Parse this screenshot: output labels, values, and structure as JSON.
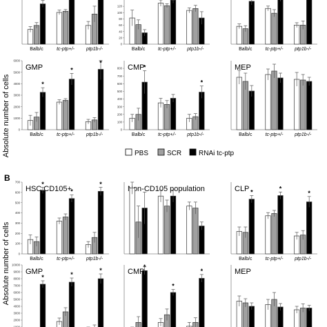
{
  "figure": {
    "section_b_label": "B",
    "y_axis_label": "Absolute number of cells",
    "legend": {
      "items": [
        {
          "label": "PBS",
          "color": "#ffffff"
        },
        {
          "label": "SCR",
          "color": "#a0a0a0"
        },
        {
          "label": "RNAi tc-ptp",
          "color": "#000000"
        }
      ]
    }
  },
  "colors": {
    "PBS": "#ffffff",
    "SCR": "#a0a0a0",
    "RNAi": "#000000"
  },
  "chart_data": [
    {
      "id": "A-top-1",
      "type": "bar",
      "title": "",
      "categories": [
        "Balb/c",
        "tc-ptp+/-",
        "ptp1b-/-"
      ],
      "ylim": [
        0,
        450
      ],
      "yticks": [],
      "series": [
        {
          "name": "PBS",
          "values": [
            130,
            280,
            165
          ],
          "errors": [
            25,
            20,
            35
          ]
        },
        {
          "name": "SCR",
          "values": [
            165,
            290,
            265
          ],
          "errors": [
            25,
            15,
            70
          ]
        },
        {
          "name": "RNAi tc-ptp",
          "values": [
            355,
            420,
            470
          ],
          "errors": [
            30,
            25,
            30
          ]
        }
      ],
      "significance": [
        true,
        true,
        false
      ]
    },
    {
      "id": "A-top-2",
      "type": "bar",
      "title": "",
      "categories": [
        "Balb/c",
        "tc-ptp+/-",
        "ptp1b-/-"
      ],
      "ylim": [
        0,
        140
      ],
      "yticks": [
        0,
        20,
        40,
        60,
        80,
        100,
        120
      ],
      "series": [
        {
          "name": "PBS",
          "values": [
            83,
            130,
            107
          ],
          "errors": [
            25,
            10,
            8
          ]
        },
        {
          "name": "SCR",
          "values": [
            62,
            122,
            113
          ],
          "errors": [
            15,
            6,
            10
          ]
        },
        {
          "name": "RNAi tc-ptp",
          "values": [
            36,
            140,
            83
          ],
          "errors": [
            10,
            10,
            20
          ]
        }
      ],
      "significance": [
        false,
        false,
        false
      ]
    },
    {
      "id": "A-top-3",
      "type": "bar",
      "title": "",
      "categories": [
        "Balb/c",
        "tc-ptp+/-",
        "ptp1b-/-"
      ],
      "ylim": [
        0,
        400
      ],
      "yticks": [],
      "series": [
        {
          "name": "PBS",
          "values": [
            150,
            300,
            160
          ],
          "errors": [
            20,
            20,
            20
          ]
        },
        {
          "name": "SCR",
          "values": [
            130,
            260,
            160
          ],
          "errors": [
            25,
            30,
            35
          ]
        },
        {
          "name": "RNAi tc-ptp",
          "values": [
            360,
            390,
            420
          ],
          "errors": [
            30,
            30,
            30
          ]
        }
      ],
      "significance": [
        false,
        false,
        false
      ]
    },
    {
      "id": "A-GMP",
      "type": "bar",
      "title": "GMP",
      "categories": [
        "Balb/c",
        "tc-ptp+/-",
        "ptp1b-/-"
      ],
      "ylim": [
        0,
        6000
      ],
      "yticks": [
        0,
        1000,
        2000,
        3000,
        4000,
        5000,
        6000
      ],
      "series": [
        {
          "name": "PBS",
          "values": [
            800,
            2400,
            700
          ],
          "errors": [
            450,
            200,
            200
          ]
        },
        {
          "name": "SCR",
          "values": [
            1100,
            2550,
            850
          ],
          "errors": [
            400,
            150,
            200
          ]
        },
        {
          "name": "RNAi tc-ptp",
          "values": [
            3250,
            4400,
            5250
          ],
          "errors": [
            400,
            500,
            900
          ]
        }
      ],
      "significance": [
        true,
        true,
        true
      ]
    },
    {
      "id": "A-CMP",
      "type": "bar",
      "title": "CMP",
      "categories": [
        "Balb/c",
        "tc-ptp+/-",
        "ptp1b-/-"
      ],
      "ylim": [
        0,
        900
      ],
      "yticks": [
        0,
        100,
        200,
        300,
        400,
        500,
        600,
        700,
        800
      ],
      "series": [
        {
          "name": "PBS",
          "values": [
            150,
            350,
            150
          ],
          "errors": [
            50,
            60,
            50
          ]
        },
        {
          "name": "SCR",
          "values": [
            200,
            330,
            170
          ],
          "errors": [
            80,
            50,
            40
          ]
        },
        {
          "name": "RNAi tc-ptp",
          "values": [
            620,
            410,
            490
          ],
          "errors": [
            150,
            50,
            80
          ]
        }
      ],
      "significance": [
        true,
        false,
        true
      ]
    },
    {
      "id": "A-MEP",
      "type": "bar",
      "title": "MEP",
      "categories": [
        "Balb/c",
        "tc-ptp+/-",
        "ptp1b-/-"
      ],
      "ylim": [
        0,
        1000
      ],
      "yticks": [],
      "series": [
        {
          "name": "PBS",
          "values": [
            760,
            800,
            730
          ],
          "errors": [
            100,
            80,
            100
          ]
        },
        {
          "name": "SCR",
          "values": [
            700,
            850,
            720
          ],
          "errors": [
            120,
            100,
            80
          ]
        },
        {
          "name": "RNAi tc-ptp",
          "values": [
            560,
            750,
            700
          ],
          "errors": [
            80,
            70,
            60
          ]
        }
      ],
      "significance": [
        false,
        false,
        false
      ]
    },
    {
      "id": "B-HSC",
      "type": "bar",
      "title": "HSC CD105+",
      "categories": [
        "Balb/c",
        "tc-ptp+/-",
        "ptp1b-/-"
      ],
      "ylim": [
        0,
        700
      ],
      "yticks": [
        0,
        100,
        200,
        300,
        400,
        500,
        600,
        700
      ],
      "series": [
        {
          "name": "PBS",
          "values": [
            140,
            320,
            90
          ],
          "errors": [
            45,
            30,
            30
          ]
        },
        {
          "name": "SCR",
          "values": [
            120,
            360,
            160
          ],
          "errors": [
            45,
            30,
            50
          ]
        },
        {
          "name": "RNAi tc-ptp",
          "values": [
            620,
            540,
            610
          ],
          "errors": [
            30,
            35,
            40
          ]
        }
      ],
      "significance": [
        true,
        true,
        true
      ]
    },
    {
      "id": "B-NonCD105",
      "type": "bar",
      "title": "Non-CD105 population",
      "categories": [
        "",
        "",
        ""
      ],
      "ylim": [
        0,
        180
      ],
      "yticks": [],
      "series": [
        {
          "name": "PBS",
          "values": [
            165,
            145,
            120
          ],
          "errors": [
            15,
            15,
            10
          ]
        },
        {
          "name": "SCR",
          "values": [
            80,
            120,
            115
          ],
          "errors": [
            40,
            15,
            15
          ]
        },
        {
          "name": "RNAi tc-ptp",
          "values": [
            115,
            145,
            70
          ],
          "errors": [
            40,
            15,
            10
          ]
        }
      ],
      "significance": [
        false,
        false,
        false
      ]
    },
    {
      "id": "B-CLP",
      "type": "bar",
      "title": "CLP",
      "categories": [
        "Balb/c",
        "tc-ptp+/-",
        "ptp1b-/-"
      ],
      "ylim": [
        0,
        1600
      ],
      "yticks": [],
      "series": [
        {
          "name": "PBS",
          "values": [
            500,
            850,
            400
          ],
          "errors": [
            100,
            70,
            80
          ]
        },
        {
          "name": "SCR",
          "values": [
            480,
            900,
            420
          ],
          "errors": [
            120,
            70,
            100
          ]
        },
        {
          "name": "RNAi tc-ptp",
          "values": [
            1220,
            1300,
            1160
          ],
          "errors": [
            80,
            80,
            120
          ]
        }
      ],
      "significance": [
        true,
        true,
        true
      ]
    },
    {
      "id": "B-GMP",
      "type": "bar",
      "title": "GMP",
      "categories": [
        "",
        "",
        ""
      ],
      "ylim": [
        0,
        10000
      ],
      "yticks": [
        0,
        1000,
        2000,
        3000,
        4000,
        5000,
        6000,
        7000,
        8000,
        9000,
        10000
      ],
      "series": [
        {
          "name": "PBS",
          "values": [
            100,
            1800,
            700
          ],
          "errors": [
            100,
            500,
            300
          ]
        },
        {
          "name": "SCR",
          "values": [
            300,
            3200,
            900
          ],
          "errors": [
            200,
            600,
            400
          ]
        },
        {
          "name": "RNAi tc-ptp",
          "values": [
            7200,
            7500,
            8000
          ],
          "errors": [
            500,
            600,
            700
          ]
        }
      ],
      "significance": [
        true,
        true,
        true
      ]
    },
    {
      "id": "B-CMP",
      "type": "bar",
      "title": "CMP",
      "categories": [
        "",
        "",
        ""
      ],
      "ylim": [
        0,
        1800
      ],
      "yticks": [],
      "series": [
        {
          "name": "PBS",
          "values": [
            100,
            300,
            200
          ],
          "errors": [
            80,
            100,
            100
          ]
        },
        {
          "name": "SCR",
          "values": [
            300,
            500,
            300
          ],
          "errors": [
            150,
            150,
            120
          ]
        },
        {
          "name": "RNAi tc-ptp",
          "values": [
            1650,
            1080,
            1450
          ],
          "errors": [
            100,
            80,
            100
          ]
        }
      ],
      "significance": [
        true,
        true,
        true
      ]
    },
    {
      "id": "B-MEP",
      "type": "bar",
      "title": "MEP",
      "categories": [
        "",
        "",
        ""
      ],
      "ylim": [
        0,
        2000
      ],
      "yticks": [],
      "series": [
        {
          "name": "PBS",
          "values": [
            950,
            850,
            700
          ],
          "errors": [
            150,
            150,
            100
          ]
        },
        {
          "name": "SCR",
          "values": [
            900,
            1000,
            750
          ],
          "errors": [
            120,
            200,
            120
          ]
        },
        {
          "name": "RNAi tc-ptp",
          "values": [
            800,
            780,
            750
          ],
          "errors": [
            100,
            100,
            80
          ]
        }
      ],
      "significance": [
        false,
        false,
        false
      ]
    }
  ]
}
